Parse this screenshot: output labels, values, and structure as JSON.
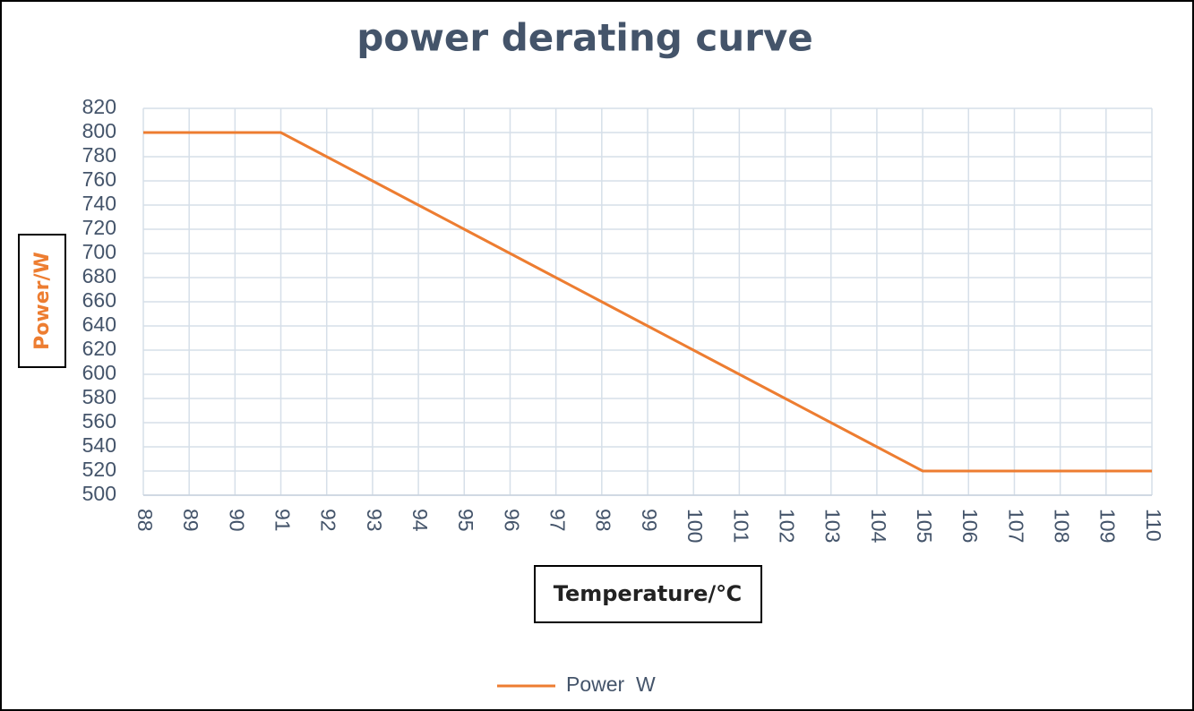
{
  "chart_data": {
    "type": "line",
    "title": "power derating curve",
    "x_label": "Temperature/℃",
    "y_label": "Power/W",
    "x": [
      88,
      89,
      90,
      91,
      92,
      93,
      94,
      95,
      96,
      97,
      98,
      99,
      100,
      101,
      102,
      103,
      104,
      105,
      106,
      107,
      108,
      109,
      110
    ],
    "series": [
      {
        "name": "Power  W",
        "color": "#ed7d31",
        "values": [
          800,
          800,
          800,
          800,
          780,
          760,
          740,
          720,
          700,
          680,
          660,
          640,
          620,
          600,
          580,
          560,
          540,
          520,
          520,
          520,
          520,
          520,
          520
        ]
      }
    ],
    "xlim": [
      88,
      110
    ],
    "xticks": [
      88,
      89,
      90,
      91,
      92,
      93,
      94,
      95,
      96,
      97,
      98,
      99,
      100,
      101,
      102,
      103,
      104,
      105,
      106,
      107,
      108,
      109,
      110
    ],
    "ylim": [
      500,
      820
    ],
    "yticks": [
      500,
      520,
      540,
      560,
      580,
      600,
      620,
      640,
      660,
      680,
      700,
      720,
      740,
      760,
      780,
      800,
      820
    ],
    "grid": true,
    "legend": "bottom"
  }
}
